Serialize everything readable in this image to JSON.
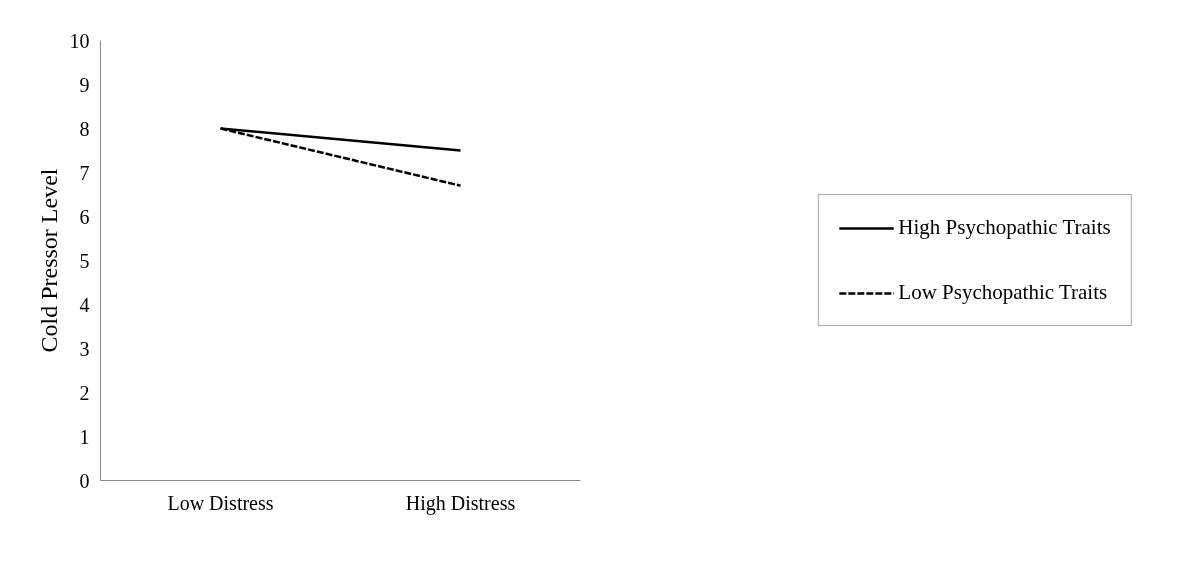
{
  "chart_data": {
    "type": "line",
    "ylabel": "Cold Pressor Level",
    "categories": [
      "Low Distress",
      "High Distress"
    ],
    "series": [
      {
        "name": "High Psychopathic Traits",
        "color": "#000000",
        "values": [
          8.0,
          7.5
        ],
        "line_style": "solid"
      },
      {
        "name": "Low Psychopathic Traits",
        "color": "#000000",
        "values": [
          8.0,
          6.7
        ],
        "line_style": "dashed"
      }
    ],
    "ylim": [
      0,
      10
    ],
    "yticks": [
      0,
      1,
      2,
      3,
      4,
      5,
      6,
      7,
      8,
      9,
      10
    ],
    "grid": false,
    "legend": "right",
    "marker": "none"
  }
}
